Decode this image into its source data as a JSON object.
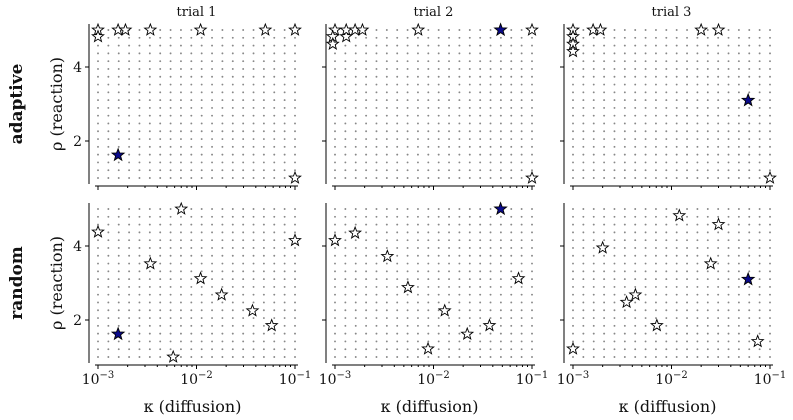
{
  "chart_data": [
    {
      "type": "scatter",
      "row": "adaptive",
      "title": "trial 1",
      "best": [
        0.0016,
        1.62
      ],
      "points": [
        [
          0.001,
          5.0
        ],
        [
          0.001,
          4.82
        ],
        [
          0.0016,
          5.0
        ],
        [
          0.0019,
          5.0
        ],
        [
          0.0034,
          5.0
        ],
        [
          0.011,
          5.0
        ],
        [
          0.05,
          5.0
        ],
        [
          0.1,
          5.0
        ],
        [
          0.1,
          1.0
        ]
      ]
    },
    {
      "type": "scatter",
      "row": "adaptive",
      "title": "trial 2",
      "best": [
        0.048,
        5.0
      ],
      "points": [
        [
          0.001,
          5.0
        ],
        [
          0.00095,
          4.82
        ],
        [
          0.00095,
          4.62
        ],
        [
          0.0013,
          4.82
        ],
        [
          0.0013,
          5.0
        ],
        [
          0.0016,
          5.0
        ],
        [
          0.0019,
          5.0
        ],
        [
          0.007,
          5.0
        ],
        [
          0.1,
          5.0
        ],
        [
          0.1,
          1.0
        ]
      ]
    },
    {
      "type": "scatter",
      "row": "adaptive",
      "title": "trial 3",
      "best": [
        0.06,
        3.1
      ],
      "points": [
        [
          0.001,
          5.0
        ],
        [
          0.001,
          4.82
        ],
        [
          0.001,
          4.62
        ],
        [
          0.001,
          4.42
        ],
        [
          0.0016,
          5.0
        ],
        [
          0.0019,
          5.0
        ],
        [
          0.02,
          5.0
        ],
        [
          0.03,
          5.0
        ],
        [
          0.1,
          1.0
        ]
      ]
    },
    {
      "type": "scatter",
      "row": "random",
      "title": "",
      "best": [
        0.0016,
        1.62
      ],
      "points": [
        [
          0.001,
          4.38
        ],
        [
          0.0034,
          3.52
        ],
        [
          0.0058,
          1.0
        ],
        [
          0.007,
          5.0
        ],
        [
          0.011,
          3.12
        ],
        [
          0.018,
          2.68
        ],
        [
          0.037,
          2.25
        ],
        [
          0.058,
          1.85
        ],
        [
          0.1,
          4.15
        ]
      ]
    },
    {
      "type": "scatter",
      "row": "random",
      "title": "",
      "best": [
        0.048,
        5.0
      ],
      "points": [
        [
          0.001,
          4.15
        ],
        [
          0.0016,
          4.35
        ],
        [
          0.0034,
          3.72
        ],
        [
          0.0055,
          2.88
        ],
        [
          0.0088,
          1.22
        ],
        [
          0.013,
          2.25
        ],
        [
          0.022,
          1.62
        ],
        [
          0.037,
          1.85
        ],
        [
          0.073,
          3.12
        ]
      ]
    },
    {
      "type": "scatter",
      "row": "random",
      "title": "",
      "best": [
        0.06,
        3.1
      ],
      "points": [
        [
          0.001,
          1.22
        ],
        [
          0.002,
          3.95
        ],
        [
          0.0035,
          2.48
        ],
        [
          0.0043,
          2.68
        ],
        [
          0.0071,
          1.85
        ],
        [
          0.012,
          4.82
        ],
        [
          0.025,
          3.52
        ],
        [
          0.03,
          4.58
        ],
        [
          0.075,
          1.42
        ]
      ]
    }
  ],
  "axes": {
    "xlabel": "κ (diffusion)",
    "ylabel": "ρ (reaction)",
    "xscale": "log",
    "xlim": [
      0.001,
      0.1
    ],
    "ylim": [
      1,
      5
    ],
    "xtick_base": "10",
    "xticks": [
      {
        "value": 0.001,
        "exp": "−3"
      },
      {
        "value": 0.01,
        "exp": "−2"
      },
      {
        "value": 0.1,
        "exp": "−1"
      }
    ],
    "yticks": [
      {
        "value": 2,
        "label": "2"
      },
      {
        "value": 4,
        "label": "4"
      }
    ],
    "grid": "dotted candidate grid 20 × 20"
  },
  "row_labels": [
    "adaptive",
    "random"
  ],
  "colors": {
    "best_star": "#0a0a8c",
    "star_edge": "#000000",
    "star_fill": "#ffffff",
    "grid_dot": "#888888"
  }
}
